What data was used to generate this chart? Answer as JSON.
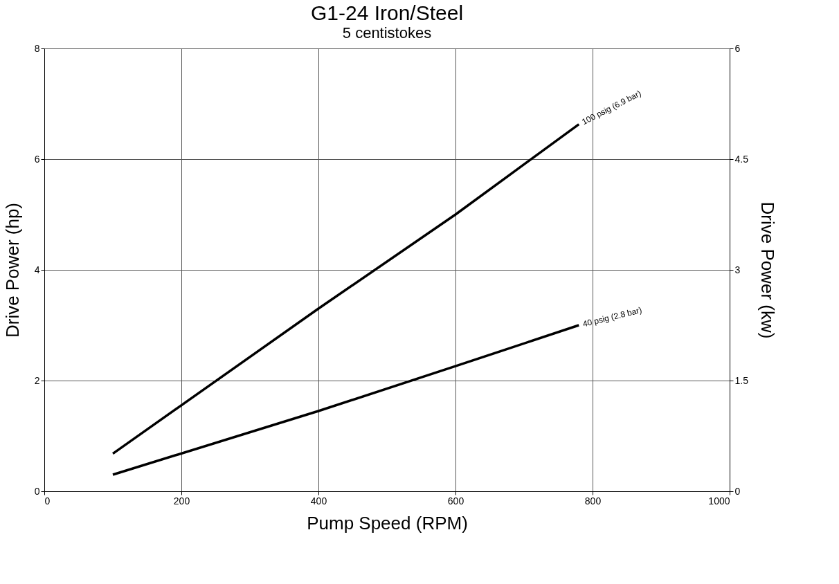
{
  "chart_data": {
    "type": "line",
    "title": "G1-24 Iron/Steel",
    "subtitle": "5 centistokes",
    "xlabel": "Pump Speed (RPM)",
    "ylabel": "Drive Power (hp)",
    "y2label": "Drive Power (kw)",
    "xlim": [
      0,
      1000
    ],
    "xticks": [
      0,
      200,
      400,
      600,
      800,
      1000
    ],
    "ylim": [
      0,
      8
    ],
    "yticks": [
      0,
      2,
      4,
      6,
      8
    ],
    "y2lim": [
      0,
      6
    ],
    "y2ticks": [
      0,
      1.5,
      3,
      4.5,
      6
    ],
    "grid": true,
    "legend": false,
    "marker": "none",
    "line_style": "solid",
    "series": [
      {
        "color": "#000000",
        "x": [
          100,
          400,
          600,
          780
        ],
        "values": [
          0.68,
          3.3,
          5.0,
          6.63
        ]
      },
      {
        "color": "#000000",
        "x": [
          100,
          400,
          600,
          780
        ],
        "values": [
          0.3,
          1.45,
          2.26,
          3.0
        ]
      }
    ],
    "annotations": [
      {
        "text": "100 psig (6.9 bar)",
        "x": 780,
        "y": 6.63
      },
      {
        "text": "40 psig (2.8 bar)",
        "x": 780,
        "y": 3.0
      }
    ]
  }
}
